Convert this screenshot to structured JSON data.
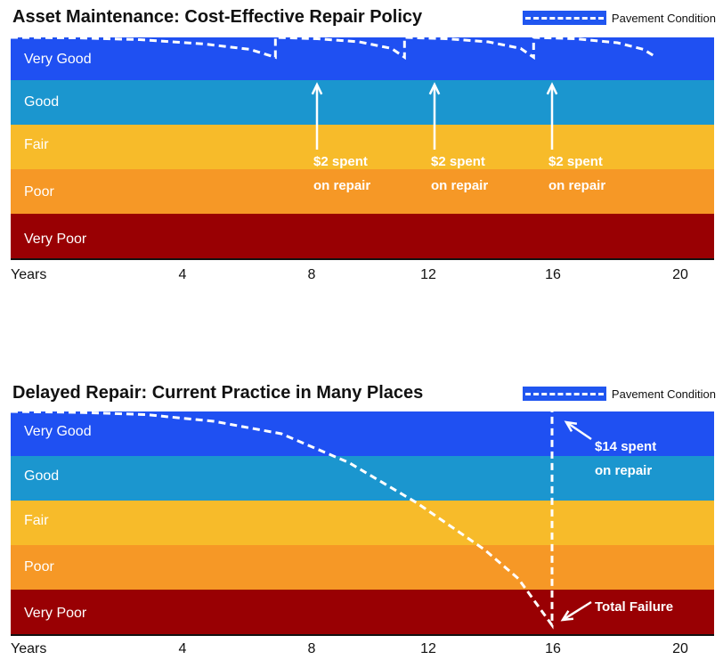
{
  "colors": {
    "very_good": "#1f50f2",
    "good": "#1b96cf",
    "fair": "#f7bb2a",
    "poor": "#f69826",
    "very_poor": "#990003",
    "pavement_line": "#ffffff"
  },
  "chart_data": [
    {
      "type": "line",
      "title": "Asset Maintenance: Cost-Effective Repair Policy",
      "xlabel": "Years",
      "x_ticks": [
        4,
        8,
        12,
        16,
        20
      ],
      "xlim": [
        0,
        21
      ],
      "bands": [
        "Very Good",
        "Good",
        "Fair",
        "Poor",
        "Very Poor"
      ],
      "legend": "Pavement Condition",
      "legend_position": "top-right",
      "series": [
        {
          "name": "Pavement Condition",
          "points": [
            [
              0,
              5.0
            ],
            [
              2,
              4.99
            ],
            [
              4,
              4.95
            ],
            [
              6,
              4.85
            ],
            [
              7.4,
              4.73
            ],
            [
              8.2,
              4.55
            ],
            [
              8.2,
              5.0
            ],
            [
              9.5,
              4.97
            ],
            [
              10.8,
              4.9
            ],
            [
              11.8,
              4.75
            ],
            [
              12.2,
              4.55
            ],
            [
              12.2,
              5.0
            ],
            [
              13.5,
              4.97
            ],
            [
              14.8,
              4.9
            ],
            [
              15.8,
              4.75
            ],
            [
              16.2,
              4.55
            ],
            [
              16.2,
              5.0
            ],
            [
              17.5,
              4.97
            ],
            [
              18.8,
              4.88
            ],
            [
              19.6,
              4.73
            ],
            [
              20.0,
              4.55
            ]
          ]
        }
      ],
      "annotations": [
        {
          "x": 8.2,
          "lines": [
            "$2 spent",
            "on repair"
          ]
        },
        {
          "x": 12.2,
          "lines": [
            "$2 spent",
            "on repair"
          ]
        },
        {
          "x": 16.2,
          "lines": [
            "$2 spent",
            "on repair"
          ]
        }
      ]
    },
    {
      "type": "line",
      "title": "Delayed Repair: Current Practice in Many Places",
      "xlabel": "Years",
      "x_ticks": [
        4,
        8,
        12,
        16,
        20
      ],
      "xlim": [
        0,
        21
      ],
      "bands": [
        "Very Good",
        "Good",
        "Fair",
        "Poor",
        "Very Poor"
      ],
      "legend": "Pavement Condition",
      "legend_position": "top-right",
      "series": [
        {
          "name": "Pavement Condition",
          "points": [
            [
              0,
              5.0
            ],
            [
              2,
              4.98
            ],
            [
              4,
              4.93
            ],
            [
              6,
              4.78
            ],
            [
              8,
              4.5
            ],
            [
              10,
              3.85
            ],
            [
              12,
              2.95
            ],
            [
              14,
              1.9
            ],
            [
              15,
              1.25
            ],
            [
              16,
              0.2
            ],
            [
              16,
              5.0
            ]
          ]
        }
      ],
      "annotations": [
        {
          "x": 16,
          "lines": [
            "$14 spent",
            "on repair"
          ]
        },
        {
          "x": 16,
          "lines": [
            "Total Failure"
          ]
        }
      ]
    }
  ]
}
